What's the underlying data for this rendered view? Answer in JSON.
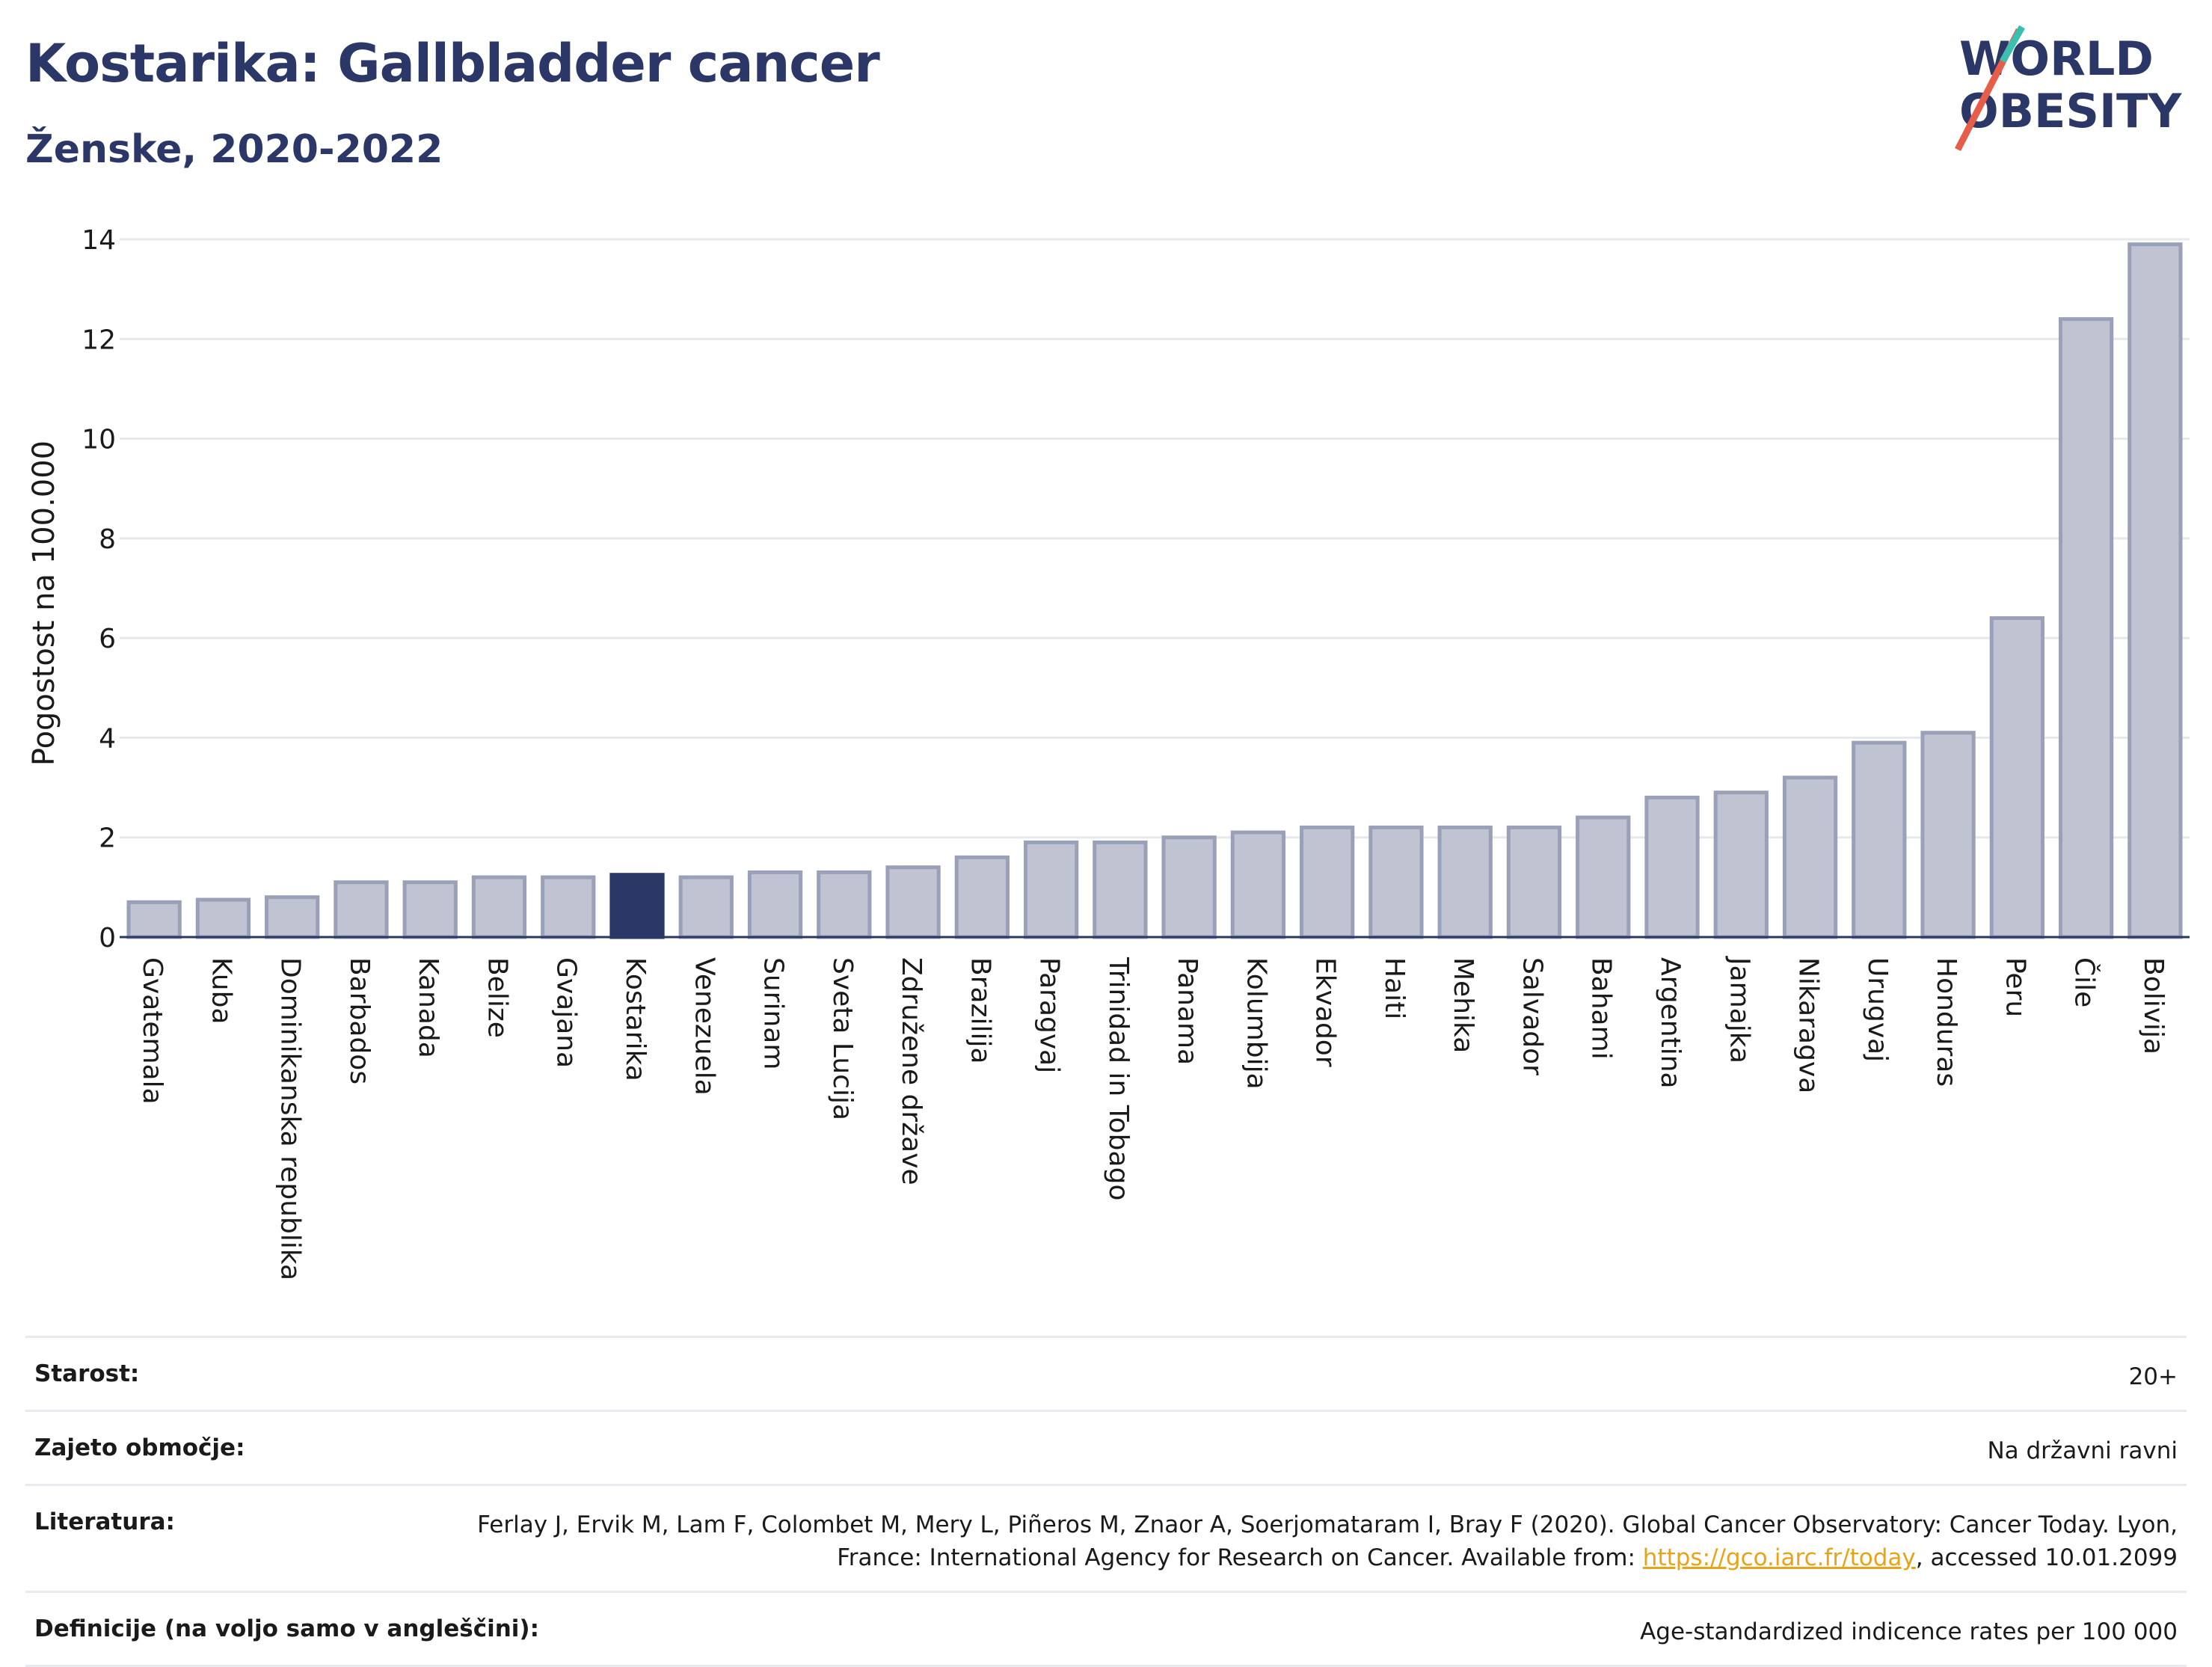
{
  "header": {
    "title": "Kostarika: Gallbladder cancer",
    "subtitle": "Ženske, 2020-2022"
  },
  "logo": {
    "line1": "WORLD",
    "line2": "OBESITY"
  },
  "colors": {
    "highlight": "#2b3766",
    "bar": "#c0c4d2",
    "bar_border": "#9aa0b8",
    "accent_red": "#e85d4a",
    "accent_teal": "#3bbfb0"
  },
  "chart_data": {
    "type": "bar",
    "ylabel": "Pogostost na 100.000",
    "ylim": [
      0,
      14
    ],
    "yticks": [
      0,
      2,
      4,
      6,
      8,
      10,
      12,
      14
    ],
    "highlight": "Kostarika",
    "categories": [
      "Gvatemala",
      "Kuba",
      "Dominikanska republika",
      "Barbados",
      "Kanada",
      "Belize",
      "Gvajana",
      "Kostarika",
      "Venezuela",
      "Surinam",
      "Sveta Lucija",
      "Združene države",
      "Brazilija",
      "Paragvaj",
      "Trinidad in Tobago",
      "Panama",
      "Kolumbija",
      "Ekvador",
      "Haiti",
      "Mehika",
      "Salvador",
      "Bahami",
      "Argentina",
      "Jamajka",
      "Nikaragva",
      "Urugvaj",
      "Honduras",
      "Peru",
      "Čile",
      "Bolivija"
    ],
    "values": [
      0.7,
      0.75,
      0.8,
      1.1,
      1.1,
      1.2,
      1.2,
      1.25,
      1.2,
      1.3,
      1.3,
      1.4,
      1.6,
      1.9,
      1.9,
      2.0,
      2.1,
      2.2,
      2.2,
      2.2,
      2.2,
      2.4,
      2.8,
      2.9,
      3.2,
      3.9,
      4.1,
      6.4,
      12.4,
      13.9
    ]
  },
  "meta": {
    "age_label": "Starost:",
    "age_value": "20+",
    "coverage_label": "Zajeto območje:",
    "coverage_value": "Na državni ravni",
    "reference_label": "Literatura:",
    "reference_text": "Ferlay J, Ervik M, Lam F, Colombet M, Mery L, Piñeros M, Znaor A, Soerjomataram I, Bray F (2020). Global Cancer Observatory: Cancer Today. Lyon, France: International Agency for Research on Cancer. Available from: ",
    "reference_link": "https://gco.iarc.fr/today",
    "reference_suffix": ", accessed 10.01.2099",
    "definitions_label": "Definicije (na voljo samo v angleščini):",
    "definitions_value": "Age-standardized indicence rates per 100 000"
  }
}
